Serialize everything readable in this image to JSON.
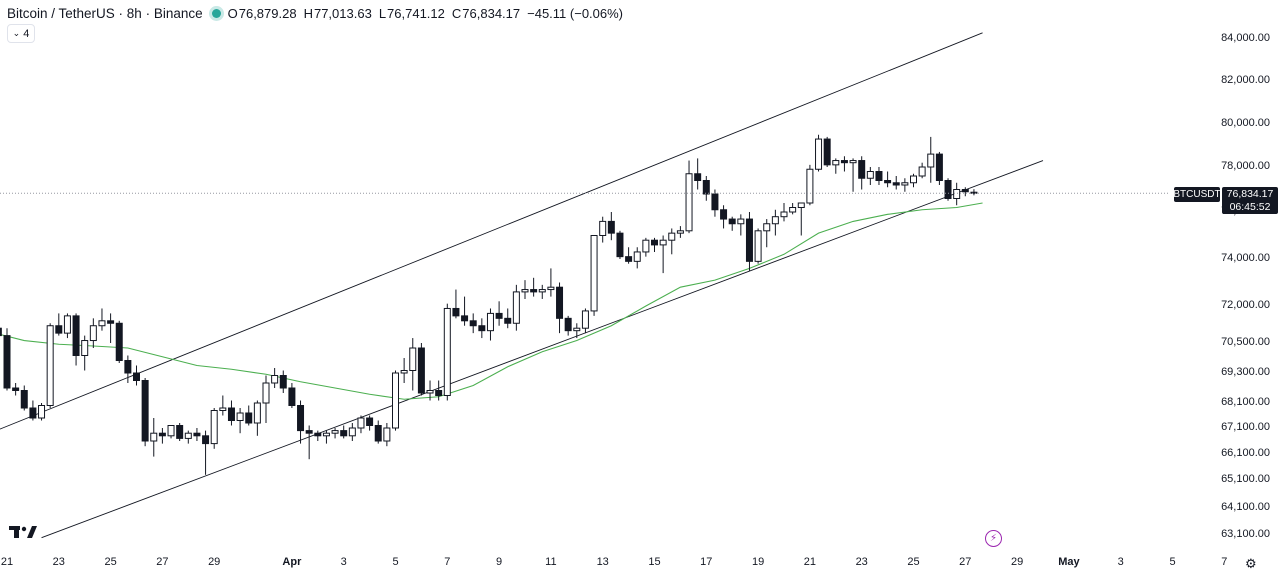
{
  "header": {
    "symbol_title": "Bitcoin / TetherUS · 8h · Binance",
    "status_color": "#26a69a",
    "open_label": "O",
    "open": "76,879.28",
    "high_label": "H",
    "high": "77,013.63",
    "low_label": "L",
    "low": "76,741.12",
    "close_label": "C",
    "close": "76,834.17",
    "change": "−45.11 (−0.06%)"
  },
  "indicator_toggle": {
    "icon": "chevron-down-icon",
    "count": "4"
  },
  "price_scale": {
    "ticker": "BTCUSDT",
    "last_price": "76,834.17",
    "countdown": "06:45:52"
  },
  "chart_data": {
    "type": "candlestick",
    "symbol": "BTCUSDT",
    "interval": "8h",
    "y_ticks": [
      {
        "label": "84,000.00",
        "value": 84000
      },
      {
        "label": "82,000.00",
        "value": 82000
      },
      {
        "label": "80,000.00",
        "value": 80000
      },
      {
        "label": "78,000.00",
        "value": 78000
      },
      {
        "label": "76,000.00",
        "value": 76000
      },
      {
        "label": "74,000.00",
        "value": 74000
      },
      {
        "label": "72,000.00",
        "value": 72000
      },
      {
        "label": "70,500.00",
        "value": 70500
      },
      {
        "label": "69,300.00",
        "value": 69300
      },
      {
        "label": "68,100.00",
        "value": 68100
      },
      {
        "label": "67,100.00",
        "value": 67100
      },
      {
        "label": "66,100.00",
        "value": 66100
      },
      {
        "label": "65,100.00",
        "value": 65100
      },
      {
        "label": "64,100.00",
        "value": 64100
      },
      {
        "label": "63,100.00",
        "value": 63100
      }
    ],
    "x_ticks": [
      {
        "label": "21",
        "date": "2025-03-21"
      },
      {
        "label": "23",
        "date": "2025-03-23"
      },
      {
        "label": "25",
        "date": "2025-03-25"
      },
      {
        "label": "27",
        "date": "2025-03-27"
      },
      {
        "label": "29",
        "date": "2025-03-29"
      },
      {
        "label": "Apr",
        "date": "2025-04-01",
        "bold": true
      },
      {
        "label": "3",
        "date": "2025-04-03"
      },
      {
        "label": "5",
        "date": "2025-04-05"
      },
      {
        "label": "7",
        "date": "2025-04-07"
      },
      {
        "label": "9",
        "date": "2025-04-09"
      },
      {
        "label": "11",
        "date": "2025-04-11"
      },
      {
        "label": "13",
        "date": "2025-04-13"
      },
      {
        "label": "15",
        "date": "2025-04-15"
      },
      {
        "label": "17",
        "date": "2025-04-17"
      },
      {
        "label": "19",
        "date": "2025-04-19"
      },
      {
        "label": "21",
        "date": "2025-04-21"
      },
      {
        "label": "23",
        "date": "2025-04-23"
      },
      {
        "label": "25",
        "date": "2025-04-25"
      },
      {
        "label": "27",
        "date": "2025-04-27"
      },
      {
        "label": "29",
        "date": "2025-04-29"
      },
      {
        "label": "May",
        "date": "2025-05-01",
        "bold": true
      },
      {
        "label": "3",
        "date": "2025-05-03"
      },
      {
        "label": "5",
        "date": "2025-05-05"
      },
      {
        "label": "7",
        "date": "2025-05-07"
      }
    ],
    "candles": [
      [
        71000,
        71300,
        69200,
        71100
      ],
      [
        71100,
        71500,
        70800,
        70800
      ],
      [
        70800,
        71100,
        68600,
        68700
      ],
      [
        68700,
        68900,
        68400,
        68600
      ],
      [
        68600,
        68800,
        67800,
        67900
      ],
      [
        67900,
        68200,
        67400,
        67500
      ],
      [
        67500,
        68100,
        67400,
        68000
      ],
      [
        68000,
        71300,
        67900,
        71200
      ],
      [
        71200,
        71700,
        70800,
        70900
      ],
      [
        70900,
        71700,
        70700,
        71600
      ],
      [
        71600,
        71700,
        69600,
        70000
      ],
      [
        70000,
        70800,
        69400,
        70600
      ],
      [
        70600,
        71500,
        70300,
        71200
      ],
      [
        71200,
        71900,
        71000,
        71400
      ],
      [
        71400,
        71700,
        70500,
        71300
      ],
      [
        71300,
        71400,
        69700,
        69800
      ],
      [
        69800,
        70000,
        68900,
        69300
      ],
      [
        69300,
        69600,
        68800,
        69000
      ],
      [
        69000,
        69100,
        66400,
        66600
      ],
      [
        66600,
        67500,
        66000,
        66900
      ],
      [
        66900,
        67100,
        66500,
        66800
      ],
      [
        66800,
        67200,
        66700,
        67200
      ],
      [
        67200,
        67300,
        66600,
        66700
      ],
      [
        66700,
        67000,
        66500,
        66900
      ],
      [
        66900,
        67100,
        66600,
        66800
      ],
      [
        66800,
        67000,
        65300,
        66500
      ],
      [
        66500,
        67900,
        66300,
        67800
      ],
      [
        67800,
        68400,
        67600,
        67900
      ],
      [
        67900,
        68200,
        67200,
        67400
      ],
      [
        67400,
        67900,
        66900,
        67700
      ],
      [
        67700,
        68000,
        67200,
        67300
      ],
      [
        67300,
        68200,
        66800,
        68100
      ],
      [
        68100,
        69200,
        67300,
        68900
      ],
      [
        68900,
        69500,
        68700,
        69200
      ],
      [
        69200,
        69400,
        68500,
        68700
      ],
      [
        68700,
        68900,
        67900,
        68000
      ],
      [
        68000,
        68200,
        66500,
        67000
      ],
      [
        67000,
        67200,
        65900,
        66900
      ],
      [
        66900,
        67000,
        66600,
        66800
      ],
      [
        66800,
        67000,
        66500,
        66900
      ],
      [
        66900,
        67100,
        66700,
        67000
      ],
      [
        67000,
        67200,
        66700,
        66800
      ],
      [
        66800,
        67300,
        66600,
        67100
      ],
      [
        67100,
        67600,
        66900,
        67500
      ],
      [
        67500,
        67600,
        67000,
        67200
      ],
      [
        67200,
        67400,
        66500,
        66600
      ],
      [
        66600,
        67300,
        66400,
        67100
      ],
      [
        67100,
        69400,
        67000,
        69300
      ],
      [
        69300,
        69900,
        68900,
        69400
      ],
      [
        69400,
        70700,
        68600,
        70300
      ],
      [
        70300,
        70500,
        68400,
        68500
      ],
      [
        68500,
        69000,
        68200,
        68600
      ],
      [
        68600,
        69000,
        68200,
        68400
      ],
      [
        68400,
        72100,
        68200,
        71900
      ],
      [
        71900,
        72700,
        71500,
        71600
      ],
      [
        71600,
        72400,
        71200,
        71400
      ],
      [
        71400,
        71700,
        70900,
        71200
      ],
      [
        71200,
        71500,
        70700,
        71000
      ],
      [
        71000,
        71900,
        70600,
        71700
      ],
      [
        71700,
        72200,
        71200,
        71500
      ],
      [
        71500,
        71900,
        71100,
        71300
      ],
      [
        71300,
        72900,
        71000,
        72600
      ],
      [
        72600,
        73100,
        72300,
        72700
      ],
      [
        72700,
        73200,
        72400,
        72600
      ],
      [
        72600,
        72900,
        72300,
        72700
      ],
      [
        72700,
        73600,
        72400,
        72800
      ],
      [
        72800,
        73000,
        70900,
        71500
      ],
      [
        71500,
        71600,
        70800,
        71000
      ],
      [
        71000,
        71300,
        70700,
        71100
      ],
      [
        71100,
        71900,
        70900,
        71800
      ],
      [
        71800,
        75000,
        71600,
        75000
      ],
      [
        75000,
        75800,
        74700,
        75600
      ],
      [
        75600,
        76000,
        74800,
        75100
      ],
      [
        75100,
        75200,
        74000,
        74100
      ],
      [
        74100,
        74500,
        73800,
        73900
      ],
      [
        73900,
        74500,
        73600,
        74300
      ],
      [
        74300,
        74900,
        74100,
        74800
      ],
      [
        74800,
        74900,
        74300,
        74600
      ],
      [
        74600,
        75000,
        73400,
        74800
      ],
      [
        74800,
        75300,
        74200,
        75100
      ],
      [
        75100,
        75400,
        74900,
        75200
      ],
      [
        75200,
        78300,
        75100,
        77700
      ],
      [
        77700,
        78400,
        77000,
        77400
      ],
      [
        77400,
        77600,
        76500,
        76800
      ],
      [
        76800,
        77000,
        75800,
        76100
      ],
      [
        76100,
        76300,
        75300,
        75700
      ],
      [
        75700,
        75800,
        75200,
        75500
      ],
      [
        75500,
        75900,
        75000,
        75700
      ],
      [
        75700,
        76000,
        73500,
        73900
      ],
      [
        73900,
        75300,
        73800,
        75200
      ],
      [
        75200,
        75700,
        74500,
        75500
      ],
      [
        75500,
        76100,
        75000,
        75800
      ],
      [
        75800,
        76400,
        75600,
        76000
      ],
      [
        76000,
        76400,
        75900,
        76200
      ],
      [
        76200,
        76300,
        75000,
        76400
      ],
      [
        76400,
        78100,
        76300,
        77900
      ],
      [
        77900,
        79500,
        77800,
        79300
      ],
      [
        79300,
        79400,
        78000,
        78100
      ],
      [
        78100,
        78400,
        77700,
        78300
      ],
      [
        78300,
        78500,
        77800,
        78200
      ],
      [
        78200,
        78400,
        76900,
        78300
      ],
      [
        78300,
        78500,
        77000,
        77500
      ],
      [
        77500,
        78000,
        77200,
        77800
      ],
      [
        77800,
        78000,
        77200,
        77400
      ],
      [
        77400,
        77800,
        77100,
        77300
      ],
      [
        77300,
        77600,
        77000,
        77200
      ],
      [
        77200,
        77500,
        76900,
        77300
      ],
      [
        77300,
        77700,
        77100,
        77600
      ],
      [
        77600,
        78200,
        77500,
        78000
      ],
      [
        78000,
        79400,
        77300,
        78600
      ],
      [
        78600,
        78700,
        77200,
        77400
      ],
      [
        77400,
        77500,
        76500,
        76600
      ],
      [
        76600,
        77300,
        76300,
        77000
      ],
      [
        77000,
        77100,
        76700,
        76900
      ],
      [
        76879.28,
        77013.63,
        76741.12,
        76834.17
      ]
    ],
    "start_date": "2025-03-20T08:00",
    "moving_average": {
      "color": "#4caf50",
      "values": [
        [
          0,
          70950
        ],
        [
          4,
          70600
        ],
        [
          8,
          70450
        ],
        [
          12,
          70380
        ],
        [
          16,
          70300
        ],
        [
          20,
          69950
        ],
        [
          24,
          69600
        ],
        [
          28,
          69450
        ],
        [
          32,
          69250
        ],
        [
          36,
          68950
        ],
        [
          40,
          68700
        ],
        [
          44,
          68450
        ],
        [
          48,
          68250
        ],
        [
          52,
          68350
        ],
        [
          56,
          68800
        ],
        [
          60,
          69550
        ],
        [
          64,
          70150
        ],
        [
          68,
          70600
        ],
        [
          72,
          71200
        ],
        [
          76,
          72000
        ],
        [
          80,
          72800
        ],
        [
          84,
          73100
        ],
        [
          88,
          73600
        ],
        [
          92,
          74200
        ],
        [
          96,
          75100
        ],
        [
          100,
          75600
        ],
        [
          104,
          75900
        ],
        [
          108,
          76100
        ],
        [
          112,
          76200
        ],
        [
          115,
          76400
        ]
      ]
    },
    "channel": {
      "color": "#131722",
      "upper": [
        [
          0,
          66900
        ],
        [
          115,
          84300
        ]
      ],
      "lower": [
        [
          6,
          63000
        ],
        [
          122,
          78300
        ]
      ]
    },
    "last_price_line": 76834.17
  }
}
